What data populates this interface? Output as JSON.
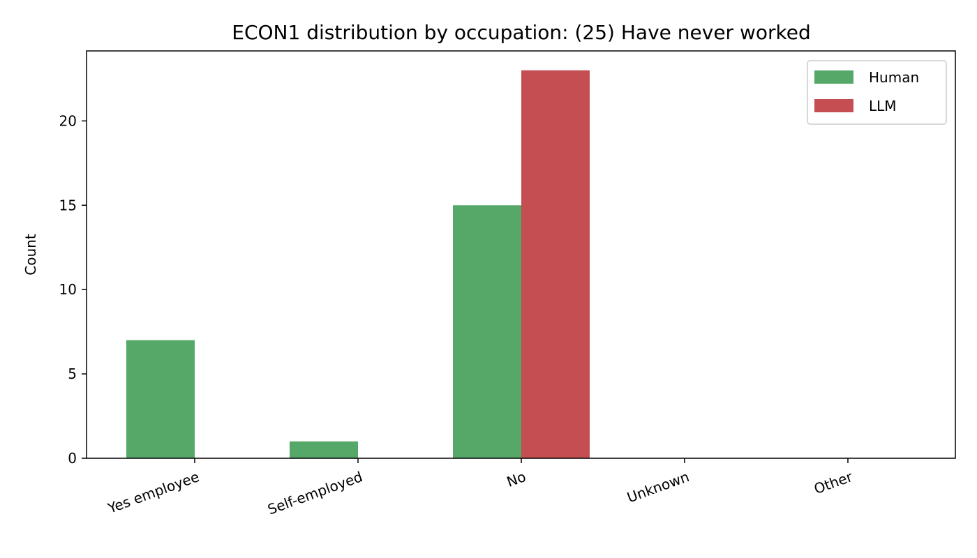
{
  "chart_data": {
    "type": "bar",
    "title": "ECON1 distribution by occupation: (25) Have never worked",
    "xlabel": "",
    "ylabel": "Count",
    "categories": [
      "Yes employee",
      "Self-employed",
      "No",
      "Unknown",
      "Other"
    ],
    "series": [
      {
        "name": "Human",
        "values": [
          7,
          1,
          15,
          0,
          0
        ],
        "color": "#55a868"
      },
      {
        "name": "LLM",
        "values": [
          0,
          0,
          23,
          0,
          0
        ],
        "color": "#c44e52"
      }
    ],
    "ylim": [
      0,
      24.15
    ],
    "yticks": [
      0,
      5,
      10,
      15,
      20
    ],
    "legend_position": "top-right",
    "grid": false
  }
}
